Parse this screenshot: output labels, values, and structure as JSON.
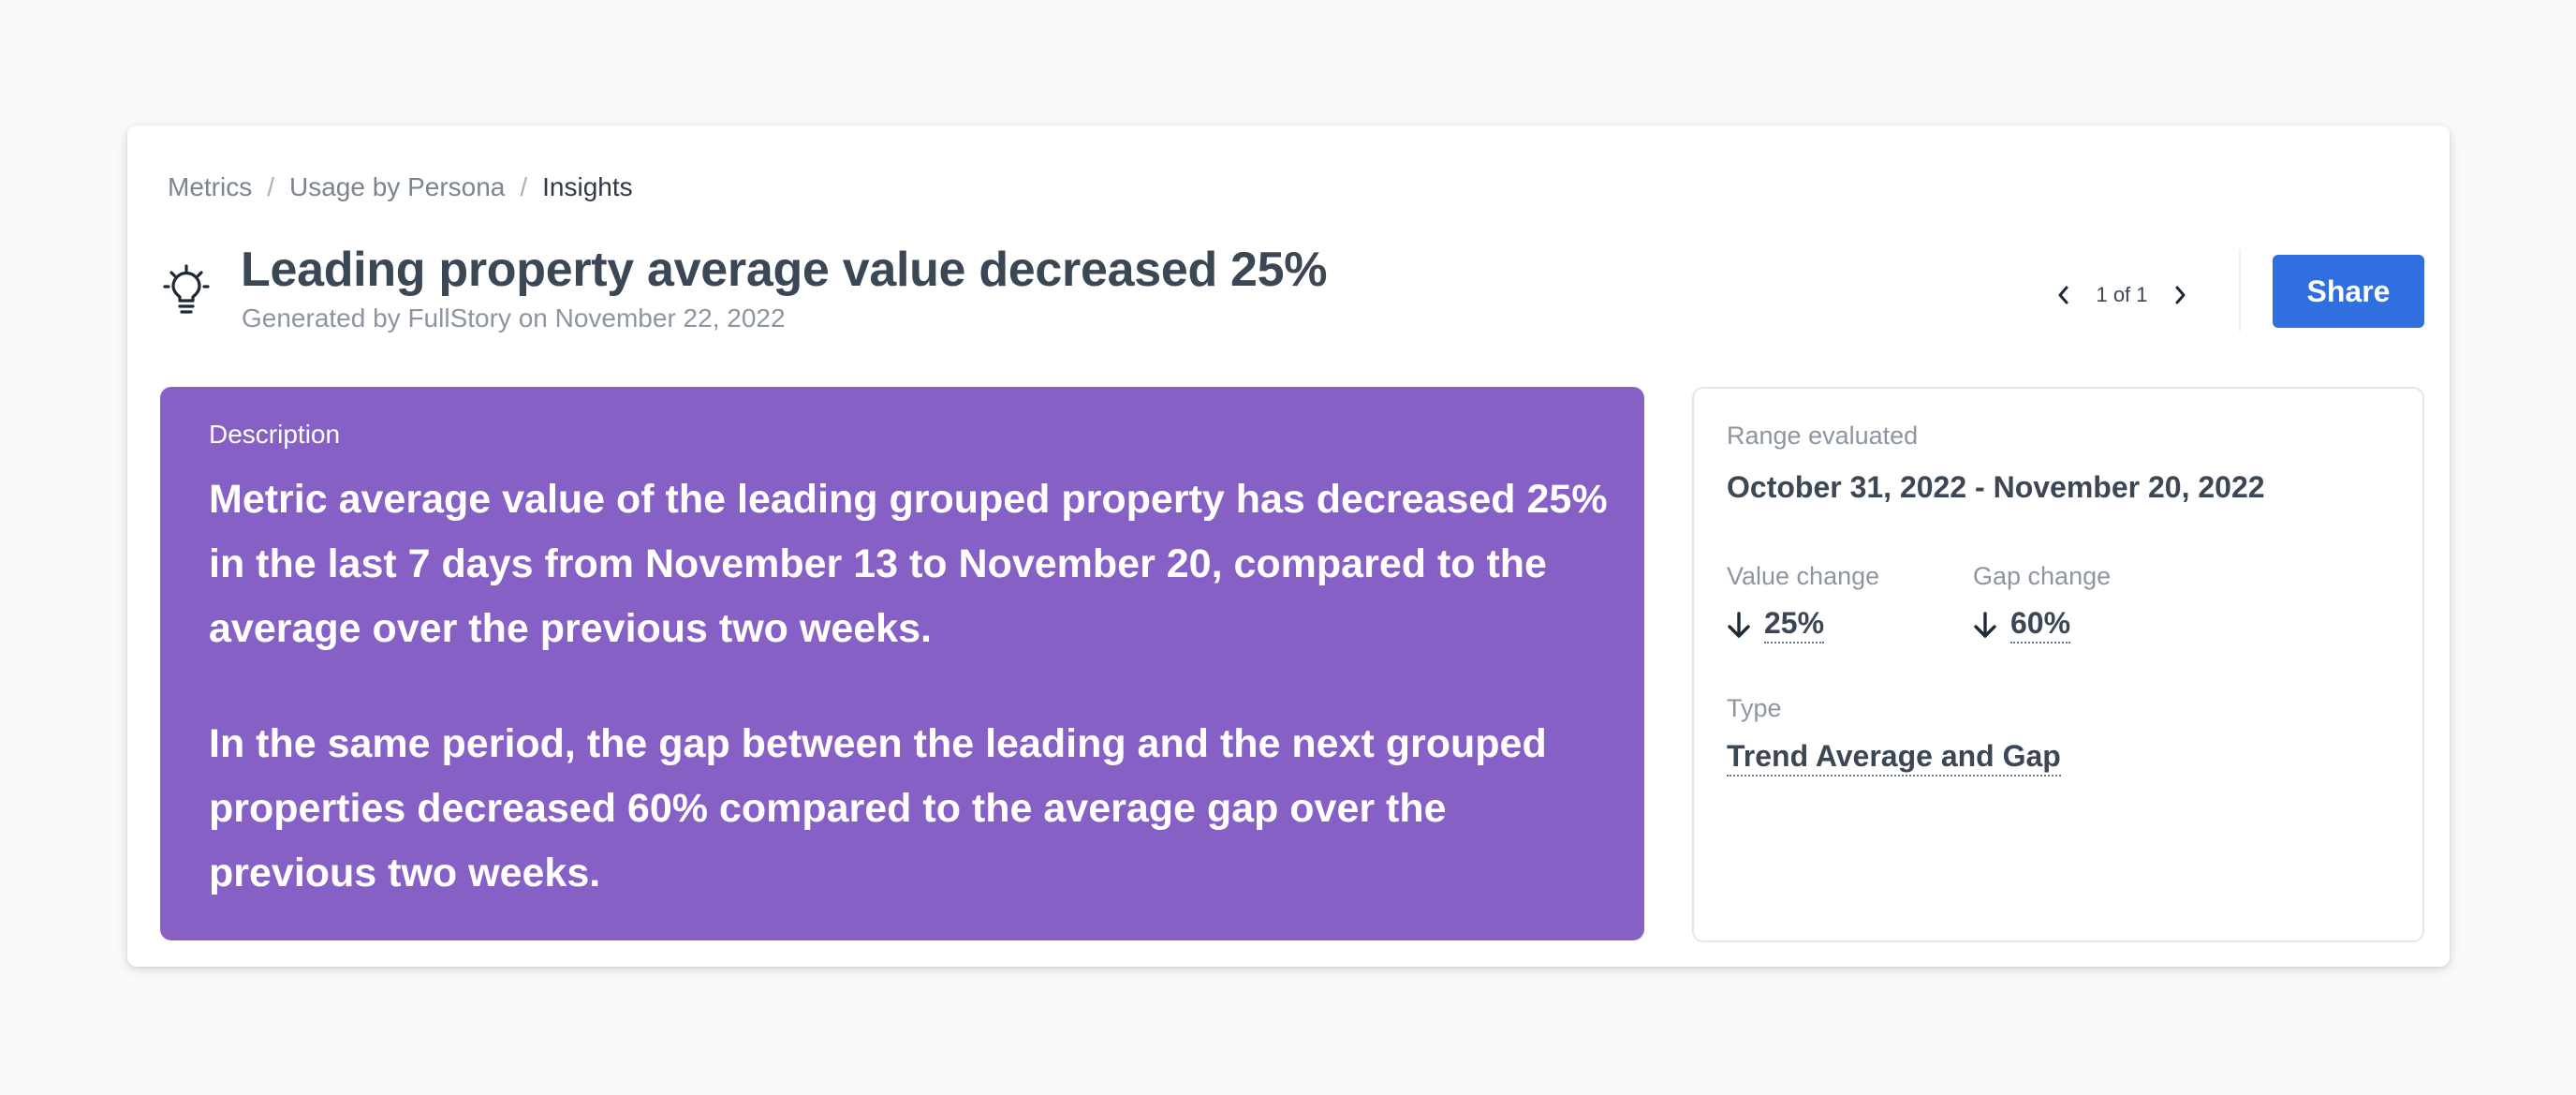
{
  "breadcrumb": {
    "items": [
      "Metrics",
      "Usage by Persona",
      "Insights"
    ],
    "separator": "/"
  },
  "header": {
    "icon": "lightbulb-icon",
    "title": "Leading property average value decreased 25%",
    "subtitle": "Generated by FullStory on November 22, 2022"
  },
  "pager": {
    "count_text": "1 of 1",
    "prev_icon": "chevron-left-icon",
    "next_icon": "chevron-right-icon"
  },
  "actions": {
    "share_label": "Share"
  },
  "description": {
    "label": "Description",
    "paragraphs": [
      "Metric average value of the leading grouped property has decreased 25% in the last 7 days from November 13 to November 20, compared to the average over the previous two weeks.",
      "In the same period, the gap between the leading and the next grouped properties decreased 60% compared to the average gap over the previous two weeks."
    ]
  },
  "details": {
    "range_label": "Range evaluated",
    "range_value": "October 31, 2022 - November 20, 2022",
    "value_change_label": "Value change",
    "value_change": "25%",
    "value_change_direction": "down",
    "gap_change_label": "Gap change",
    "gap_change": "60%",
    "gap_change_direction": "down",
    "type_label": "Type",
    "type_value": "Trend Average and Gap"
  },
  "colors": {
    "background": "#fafafa",
    "card": "#ffffff",
    "description_panel": "#8660c5",
    "share_button": "#2f6fdf",
    "title_text": "#3b4754",
    "muted_text": "#8d96a0"
  }
}
